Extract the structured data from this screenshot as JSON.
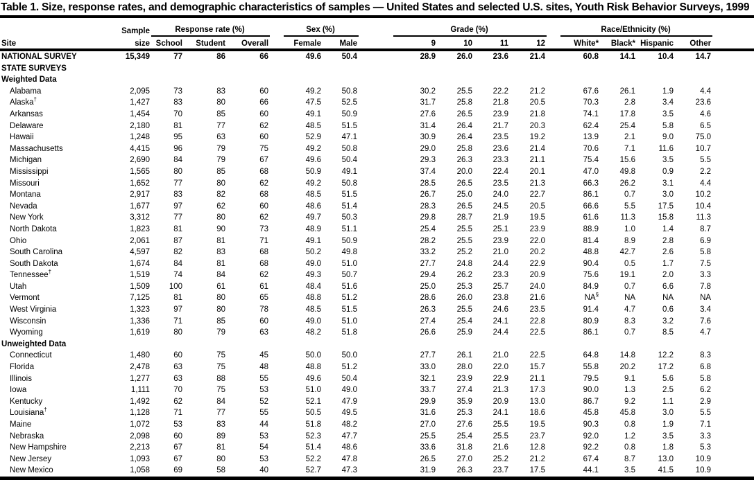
{
  "title": "Table 1. Size, response rates, and demographic characteristics of samples — United States and selected U.S. sites, Youth Risk Behavior Surveys, 1999",
  "table": {
    "col_headers": {
      "site": "Site",
      "sample_top": "Sample",
      "sample_bottom": "size",
      "response_group": "Response rate (%)",
      "response_cols": [
        "School",
        "Student",
        "Overall"
      ],
      "sex_group": "Sex (%)",
      "sex_cols": [
        "Female",
        "Male"
      ],
      "grade_group": "Grade (%)",
      "grade_cols": [
        "9",
        "10",
        "11",
        "12"
      ],
      "race_group": "Race/Ethnicity (%)",
      "race_cols": [
        "White*",
        "Black*",
        "Hispanic",
        "Other"
      ]
    },
    "rows": [
      {
        "site": "NATIONAL SURVEY",
        "bold": true,
        "indent": false,
        "section": false,
        "values": [
          "15,349",
          "77",
          "86",
          "66",
          "49.6",
          "50.4",
          "28.9",
          "26.0",
          "23.6",
          "21.4",
          "60.8",
          "14.1",
          "10.4",
          "14.7"
        ]
      },
      {
        "site": "STATE SURVEYS",
        "bold": true,
        "indent": false,
        "section": true,
        "values": []
      },
      {
        "site": "Weighted Data",
        "bold": true,
        "indent": false,
        "section": true,
        "values": []
      },
      {
        "site": "Alabama",
        "indent": true,
        "section": false,
        "values": [
          "2,095",
          "73",
          "83",
          "60",
          "49.2",
          "50.8",
          "30.2",
          "25.5",
          "22.2",
          "21.2",
          "67.6",
          "26.1",
          "1.9",
          "4.4"
        ]
      },
      {
        "site": "Alaska",
        "sup": "†",
        "indent": true,
        "section": false,
        "values": [
          "1,427",
          "83",
          "80",
          "66",
          "47.5",
          "52.5",
          "31.7",
          "25.8",
          "21.8",
          "20.5",
          "70.3",
          "2.8",
          "3.4",
          "23.6"
        ]
      },
      {
        "site": "Arkansas",
        "indent": true,
        "section": false,
        "values": [
          "1,454",
          "70",
          "85",
          "60",
          "49.1",
          "50.9",
          "27.6",
          "26.5",
          "23.9",
          "21.8",
          "74.1",
          "17.8",
          "3.5",
          "4.6"
        ]
      },
      {
        "site": "Delaware",
        "indent": true,
        "section": false,
        "values": [
          "2,180",
          "81",
          "77",
          "62",
          "48.5",
          "51.5",
          "31.4",
          "26.4",
          "21.7",
          "20.3",
          "62.4",
          "25.4",
          "5.8",
          "6.5"
        ]
      },
      {
        "site": "Hawaii",
        "indent": true,
        "section": false,
        "values": [
          "1,248",
          "95",
          "63",
          "60",
          "52.9",
          "47.1",
          "30.9",
          "26.4",
          "23.5",
          "19.2",
          "13.9",
          "2.1",
          "9.0",
          "75.0"
        ]
      },
      {
        "site": "Massachusetts",
        "indent": true,
        "section": false,
        "values": [
          "4,415",
          "96",
          "79",
          "75",
          "49.2",
          "50.8",
          "29.0",
          "25.8",
          "23.6",
          "21.4",
          "70.6",
          "7.1",
          "11.6",
          "10.7"
        ]
      },
      {
        "site": "Michigan",
        "indent": true,
        "section": false,
        "values": [
          "2,690",
          "84",
          "79",
          "67",
          "49.6",
          "50.4",
          "29.3",
          "26.3",
          "23.3",
          "21.1",
          "75.4",
          "15.6",
          "3.5",
          "5.5"
        ]
      },
      {
        "site": "Mississippi",
        "indent": true,
        "section": false,
        "values": [
          "1,565",
          "80",
          "85",
          "68",
          "50.9",
          "49.1",
          "37.4",
          "20.0",
          "22.4",
          "20.1",
          "47.0",
          "49.8",
          "0.9",
          "2.2"
        ]
      },
      {
        "site": "Missouri",
        "indent": true,
        "section": false,
        "values": [
          "1,652",
          "77",
          "80",
          "62",
          "49.2",
          "50.8",
          "28.5",
          "26.5",
          "23.5",
          "21.3",
          "66.3",
          "26.2",
          "3.1",
          "4.4"
        ]
      },
      {
        "site": "Montana",
        "indent": true,
        "section": false,
        "values": [
          "2,917",
          "83",
          "82",
          "68",
          "48.5",
          "51.5",
          "26.7",
          "25.0",
          "24.0",
          "22.7",
          "86.1",
          "0.7",
          "3.0",
          "10.2"
        ]
      },
      {
        "site": "Nevada",
        "indent": true,
        "section": false,
        "values": [
          "1,677",
          "97",
          "62",
          "60",
          "48.6",
          "51.4",
          "28.3",
          "26.5",
          "24.5",
          "20.5",
          "66.6",
          "5.5",
          "17.5",
          "10.4"
        ]
      },
      {
        "site": "New York",
        "indent": true,
        "section": false,
        "values": [
          "3,312",
          "77",
          "80",
          "62",
          "49.7",
          "50.3",
          "29.8",
          "28.7",
          "21.9",
          "19.5",
          "61.6",
          "11.3",
          "15.8",
          "11.3"
        ]
      },
      {
        "site": "North Dakota",
        "indent": true,
        "section": false,
        "values": [
          "1,823",
          "81",
          "90",
          "73",
          "48.9",
          "51.1",
          "25.4",
          "25.5",
          "25.1",
          "23.9",
          "88.9",
          "1.0",
          "1.4",
          "8.7"
        ]
      },
      {
        "site": "Ohio",
        "indent": true,
        "section": false,
        "values": [
          "2,061",
          "87",
          "81",
          "71",
          "49.1",
          "50.9",
          "28.2",
          "25.5",
          "23.9",
          "22.0",
          "81.4",
          "8.9",
          "2.8",
          "6.9"
        ]
      },
      {
        "site": "South Carolina",
        "indent": true,
        "section": false,
        "values": [
          "4,597",
          "82",
          "83",
          "68",
          "50.2",
          "49.8",
          "33.2",
          "25.2",
          "21.0",
          "20.2",
          "48.8",
          "42.7",
          "2.6",
          "5.8"
        ]
      },
      {
        "site": "South Dakota",
        "indent": true,
        "section": false,
        "values": [
          "1,674",
          "84",
          "81",
          "68",
          "49.0",
          "51.0",
          "27.7",
          "24.8",
          "24.4",
          "22.9",
          "90.4",
          "0.5",
          "1.7",
          "7.5"
        ]
      },
      {
        "site": "Tennessee",
        "sup": "†",
        "indent": true,
        "section": false,
        "values": [
          "1,519",
          "74",
          "84",
          "62",
          "49.3",
          "50.7",
          "29.4",
          "26.2",
          "23.3",
          "20.9",
          "75.6",
          "19.1",
          "2.0",
          "3.3"
        ]
      },
      {
        "site": "Utah",
        "indent": true,
        "section": false,
        "values": [
          "1,509",
          "100",
          "61",
          "61",
          "48.4",
          "51.6",
          "25.0",
          "25.3",
          "25.7",
          "24.0",
          "84.9",
          "0.7",
          "6.6",
          "7.8"
        ]
      },
      {
        "site": "Vermont",
        "indent": true,
        "section": false,
        "values": [
          "7,125",
          "81",
          "80",
          "65",
          "48.8",
          "51.2",
          "28.6",
          "26.0",
          "23.8",
          "21.6",
          "NA§",
          "NA",
          "NA",
          "NA"
        ]
      },
      {
        "site": "West Virginia",
        "indent": true,
        "section": false,
        "values": [
          "1,323",
          "97",
          "80",
          "78",
          "48.5",
          "51.5",
          "26.3",
          "25.5",
          "24.6",
          "23.5",
          "91.4",
          "4.7",
          "0.6",
          "3.4"
        ]
      },
      {
        "site": "Wisconsin",
        "indent": true,
        "section": false,
        "values": [
          "1,336",
          "71",
          "85",
          "60",
          "49.0",
          "51.0",
          "27.4",
          "25.4",
          "24.1",
          "22.8",
          "80.9",
          "8.3",
          "3.2",
          "7.6"
        ]
      },
      {
        "site": "Wyoming",
        "indent": true,
        "section": false,
        "values": [
          "1,619",
          "80",
          "79",
          "63",
          "48.2",
          "51.8",
          "26.6",
          "25.9",
          "24.4",
          "22.5",
          "86.1",
          "0.7",
          "8.5",
          "4.7"
        ]
      },
      {
        "site": "Unweighted Data",
        "bold": true,
        "indent": false,
        "section": true,
        "values": []
      },
      {
        "site": "Connecticut",
        "indent": true,
        "section": false,
        "values": [
          "1,480",
          "60",
          "75",
          "45",
          "50.0",
          "50.0",
          "27.7",
          "26.1",
          "21.0",
          "22.5",
          "64.8",
          "14.8",
          "12.2",
          "8.3"
        ]
      },
      {
        "site": "Florida",
        "indent": true,
        "section": false,
        "values": [
          "2,478",
          "63",
          "75",
          "48",
          "48.8",
          "51.2",
          "33.0",
          "28.0",
          "22.0",
          "15.7",
          "55.8",
          "20.2",
          "17.2",
          "6.8"
        ]
      },
      {
        "site": "Illinois",
        "indent": true,
        "section": false,
        "values": [
          "1,277",
          "63",
          "88",
          "55",
          "49.6",
          "50.4",
          "32.1",
          "23.9",
          "22.9",
          "21.1",
          "79.5",
          "9.1",
          "5.6",
          "5.8"
        ]
      },
      {
        "site": "Iowa",
        "indent": true,
        "section": false,
        "values": [
          "1,111",
          "70",
          "75",
          "53",
          "51.0",
          "49.0",
          "33.7",
          "27.4",
          "21.3",
          "17.3",
          "90.0",
          "1.3",
          "2.5",
          "6.2"
        ]
      },
      {
        "site": "Kentucky",
        "indent": true,
        "section": false,
        "values": [
          "1,492",
          "62",
          "84",
          "52",
          "52.1",
          "47.9",
          "29.9",
          "35.9",
          "20.9",
          "13.0",
          "86.7",
          "9.2",
          "1.1",
          "2.9"
        ]
      },
      {
        "site": "Louisiana",
        "sup": "†",
        "indent": true,
        "section": false,
        "values": [
          "1,128",
          "71",
          "77",
          "55",
          "50.5",
          "49.5",
          "31.6",
          "25.3",
          "24.1",
          "18.6",
          "45.8",
          "45.8",
          "3.0",
          "5.5"
        ]
      },
      {
        "site": "Maine",
        "indent": true,
        "section": false,
        "values": [
          "1,072",
          "53",
          "83",
          "44",
          "51.8",
          "48.2",
          "27.0",
          "27.6",
          "25.5",
          "19.5",
          "90.3",
          "0.8",
          "1.9",
          "7.1"
        ]
      },
      {
        "site": "Nebraska",
        "indent": true,
        "section": false,
        "values": [
          "2,098",
          "60",
          "89",
          "53",
          "52.3",
          "47.7",
          "25.5",
          "25.4",
          "25.5",
          "23.7",
          "92.0",
          "1.2",
          "3.5",
          "3.3"
        ]
      },
      {
        "site": "New Hampshire",
        "indent": true,
        "section": false,
        "values": [
          "2,213",
          "67",
          "81",
          "54",
          "51.4",
          "48.6",
          "33.6",
          "31.8",
          "21.6",
          "12.8",
          "92.2",
          "0.8",
          "1.8",
          "5.3"
        ]
      },
      {
        "site": "New Jersey",
        "indent": true,
        "section": false,
        "values": [
          "1,093",
          "67",
          "80",
          "53",
          "52.2",
          "47.8",
          "26.5",
          "27.0",
          "25.2",
          "21.2",
          "67.4",
          "8.7",
          "13.0",
          "10.9"
        ]
      },
      {
        "site": "New Mexico",
        "indent": true,
        "section": false,
        "values": [
          "1,058",
          "69",
          "58",
          "40",
          "52.7",
          "47.3",
          "31.9",
          "26.3",
          "23.7",
          "17.5",
          "44.1",
          "3.5",
          "41.5",
          "10.9"
        ]
      }
    ]
  }
}
